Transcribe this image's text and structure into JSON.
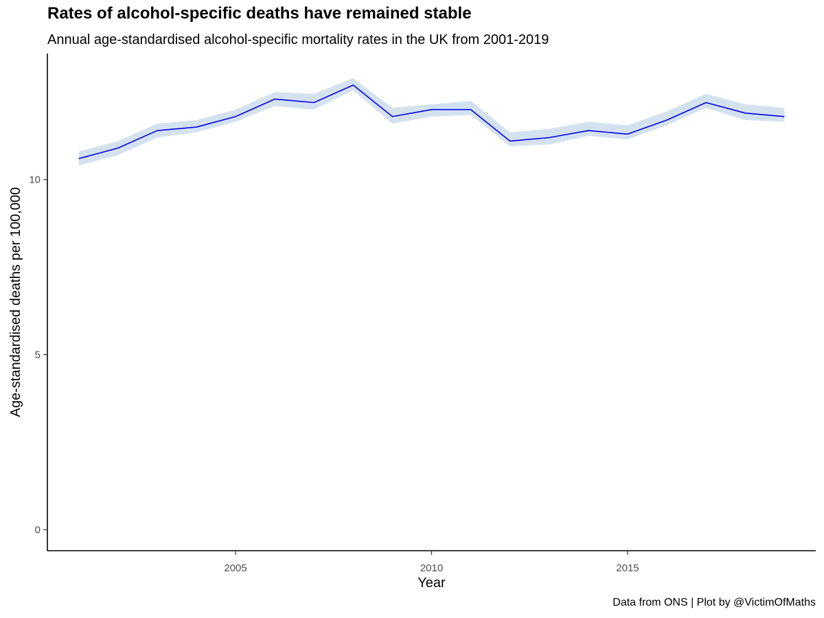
{
  "chart_data": {
    "type": "line",
    "title": "Rates of alcohol-specific deaths have remained stable",
    "subtitle": "Annual age-standardised alcohol-specific mortality rates in the UK from 2001-2019",
    "caption": "Data from ONS | Plot by @VictimOfMaths",
    "xlabel": "Year",
    "ylabel": "Age-standardised deaths per 100,000",
    "x": [
      2001,
      2002,
      2003,
      2004,
      2005,
      2006,
      2007,
      2008,
      2009,
      2010,
      2011,
      2012,
      2013,
      2014,
      2015,
      2016,
      2017,
      2018,
      2019
    ],
    "series": [
      {
        "values": [
          10.6,
          10.9,
          11.4,
          11.5,
          11.8,
          12.3,
          12.2,
          12.7,
          11.8,
          12.0,
          12.0,
          11.1,
          11.2,
          11.4,
          11.3,
          11.7,
          12.2,
          11.9,
          11.8
        ],
        "lower": [
          10.4,
          10.7,
          11.2,
          11.35,
          11.65,
          12.1,
          12.0,
          12.55,
          11.6,
          11.8,
          11.85,
          10.95,
          11.0,
          11.25,
          11.15,
          11.55,
          12.05,
          11.7,
          11.65
        ],
        "upper": [
          10.8,
          11.1,
          11.6,
          11.7,
          12.0,
          12.5,
          12.45,
          12.9,
          12.05,
          12.15,
          12.25,
          11.35,
          11.45,
          11.65,
          11.55,
          11.95,
          12.45,
          12.15,
          12.05
        ],
        "color": "#0000ee",
        "band_color": "#d4e2f0"
      }
    ],
    "xlim": [
      2000.2,
      2019.8
    ],
    "ylim": [
      -0.6,
      13.6
    ],
    "xticks": [
      2005,
      2010,
      2015
    ],
    "yticks": [
      0,
      5,
      10
    ],
    "grid": false,
    "legend": "none"
  }
}
